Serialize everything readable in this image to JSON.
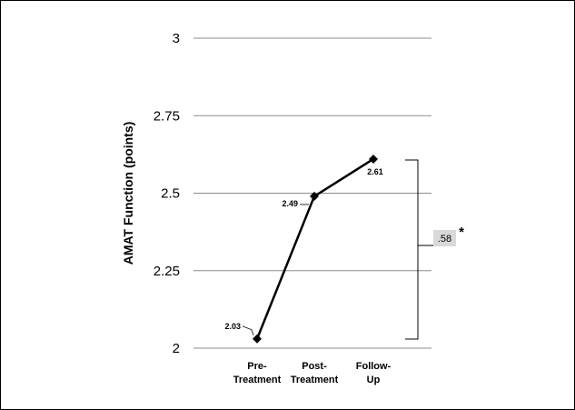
{
  "chart_data": {
    "type": "line",
    "ylabel": "AMAT Function  (points)",
    "xlabel": "",
    "ylim": [
      2,
      3
    ],
    "yticks": [
      "2",
      "2.25",
      "2.5",
      "2.75",
      "3"
    ],
    "ytick_values": [
      2,
      2.25,
      2.5,
      2.75,
      3
    ],
    "categories": [
      [
        "Pre-",
        "Treatment"
      ],
      [
        "Post-",
        "Treatment"
      ],
      [
        "Follow-",
        "Up"
      ]
    ],
    "values": [
      2.03,
      2.49,
      2.61
    ],
    "data_labels": [
      "2.03",
      "2.49",
      "2.61"
    ],
    "grid": true,
    "line_color": "#000000",
    "grid_color": "#8c8c8c",
    "annotation": {
      "text": ".58",
      "marker": "*",
      "from_value": 2.03,
      "to_value": 2.61,
      "box_color": "#d9d9d9"
    }
  }
}
